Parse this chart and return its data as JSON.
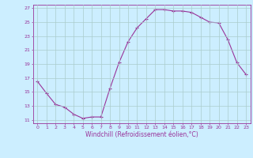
{
  "x": [
    0,
    1,
    2,
    3,
    4,
    5,
    6,
    7,
    8,
    9,
    10,
    11,
    12,
    13,
    14,
    15,
    16,
    17,
    18,
    19,
    20,
    21,
    22,
    23
  ],
  "y": [
    16.5,
    14.8,
    13.2,
    12.8,
    11.8,
    11.2,
    11.4,
    11.4,
    15.5,
    19.2,
    22.2,
    24.2,
    25.5,
    26.8,
    26.8,
    26.6,
    26.6,
    26.4,
    25.7,
    25.0,
    24.9,
    22.5,
    19.2,
    17.5
  ],
  "line_color": "#993399",
  "marker": "+",
  "marker_size": 3,
  "bg_color": "#cceeff",
  "grid_color": "#aacccc",
  "xlabel": "Windchill (Refroidissement éolien,°C)",
  "xlabel_color": "#993399",
  "tick_color": "#993399",
  "ylim": [
    10.5,
    27.5
  ],
  "yticks": [
    11,
    13,
    15,
    17,
    19,
    21,
    23,
    25,
    27
  ],
  "xlim": [
    -0.5,
    23.5
  ],
  "xticks": [
    0,
    1,
    2,
    3,
    4,
    5,
    6,
    7,
    8,
    9,
    10,
    11,
    12,
    13,
    14,
    15,
    16,
    17,
    18,
    19,
    20,
    21,
    22,
    23
  ]
}
